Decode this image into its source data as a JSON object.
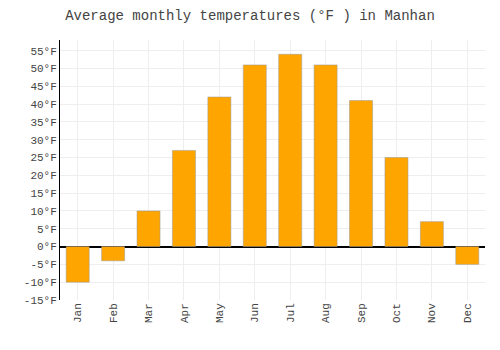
{
  "chart_data": {
    "type": "bar",
    "title": "Average monthly temperatures (°F ) in Manhan",
    "categories": [
      "Jan",
      "Feb",
      "Mar",
      "Apr",
      "May",
      "Jun",
      "Jul",
      "Aug",
      "Sep",
      "Oct",
      "Nov",
      "Dec"
    ],
    "values": [
      -10,
      -4,
      10,
      27,
      42,
      51,
      54,
      51,
      41,
      25,
      7,
      -5
    ],
    "color": "#FFA500",
    "ylim": [
      -15,
      58
    ],
    "yticks": [
      {
        "value": -15,
        "label": "-15°F"
      },
      {
        "value": -10,
        "label": "-10°F"
      },
      {
        "value": -5,
        "label": "-5°F"
      },
      {
        "value": 0,
        "label": "0°F"
      },
      {
        "value": 5,
        "label": "5°F"
      },
      {
        "value": 10,
        "label": "10°F"
      },
      {
        "value": 15,
        "label": "15°F"
      },
      {
        "value": 20,
        "label": "20°F"
      },
      {
        "value": 25,
        "label": "25°F"
      },
      {
        "value": 30,
        "label": "30°F"
      },
      {
        "value": 35,
        "label": "35°F"
      },
      {
        "value": 40,
        "label": "40°F"
      },
      {
        "value": 45,
        "label": "45°F"
      },
      {
        "value": 50,
        "label": "50°F"
      },
      {
        "value": 55,
        "label": "55°F"
      }
    ],
    "grid": true
  }
}
